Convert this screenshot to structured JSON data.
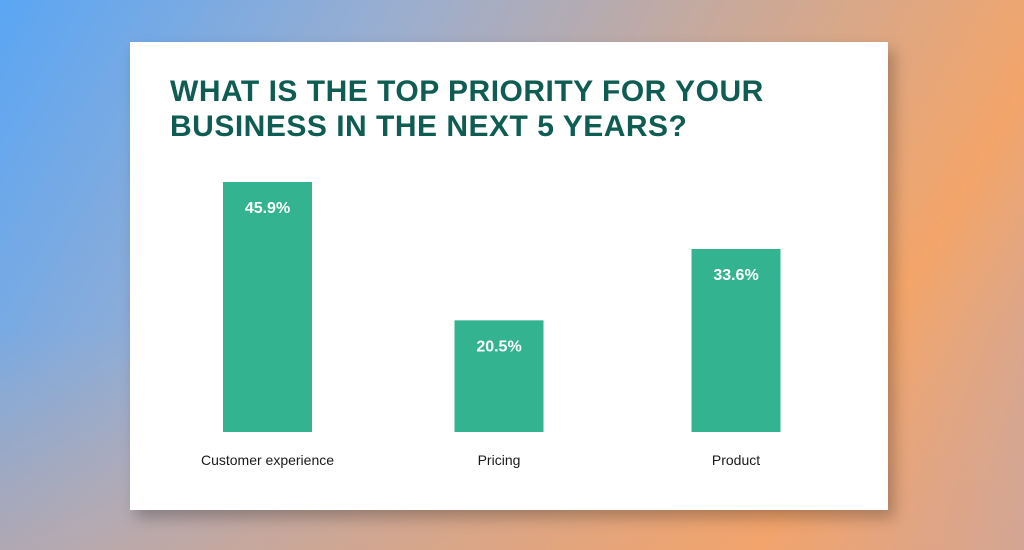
{
  "chart_data": {
    "type": "bar",
    "title_lines": [
      "WHAT IS THE TOP PRIORITY FOR YOUR",
      "BUSINESS IN THE NEXT 5 YEARS?"
    ],
    "categories": [
      "Customer experience",
      "Pricing",
      "Product"
    ],
    "values": [
      45.9,
      20.5,
      33.6
    ],
    "data_labels": [
      "45.9%",
      "20.5%",
      "33.6%"
    ],
    "xlabel": "",
    "ylabel": "",
    "ylim": [
      0,
      45.9
    ],
    "grid": false,
    "colors": {
      "bar": "#33b38f",
      "title": "#0e5c52",
      "label": "#1a1a1a"
    }
  }
}
